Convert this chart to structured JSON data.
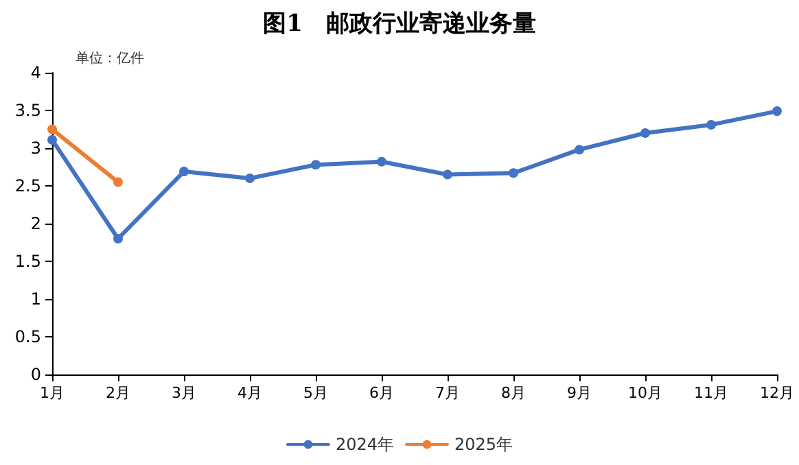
{
  "chart_data": {
    "type": "line",
    "title": "图1　邮政行业寄递业务量",
    "annotations": [
      "单位：亿件"
    ],
    "categories": [
      "1月",
      "2月",
      "3月",
      "4月",
      "5月",
      "6月",
      "7月",
      "8月",
      "9月",
      "10月",
      "11月",
      "12月"
    ],
    "series": [
      {
        "name": "2024年",
        "color": "#4472c4",
        "values": [
          3.11,
          1.8,
          2.69,
          2.6,
          2.78,
          2.82,
          2.65,
          2.67,
          2.98,
          3.2,
          3.31,
          3.49
        ]
      },
      {
        "name": "2025年",
        "color": "#ed7d31",
        "values": [
          3.25,
          2.55,
          null,
          null,
          null,
          null,
          null,
          null,
          null,
          null,
          null,
          null
        ]
      }
    ],
    "ylim": [
      0,
      4
    ],
    "yticks": [
      0,
      0.5,
      1,
      1.5,
      2,
      2.5,
      3,
      3.5,
      4
    ],
    "grid": false,
    "legend": "bottom",
    "marker": "circle",
    "line_style": "solid"
  }
}
